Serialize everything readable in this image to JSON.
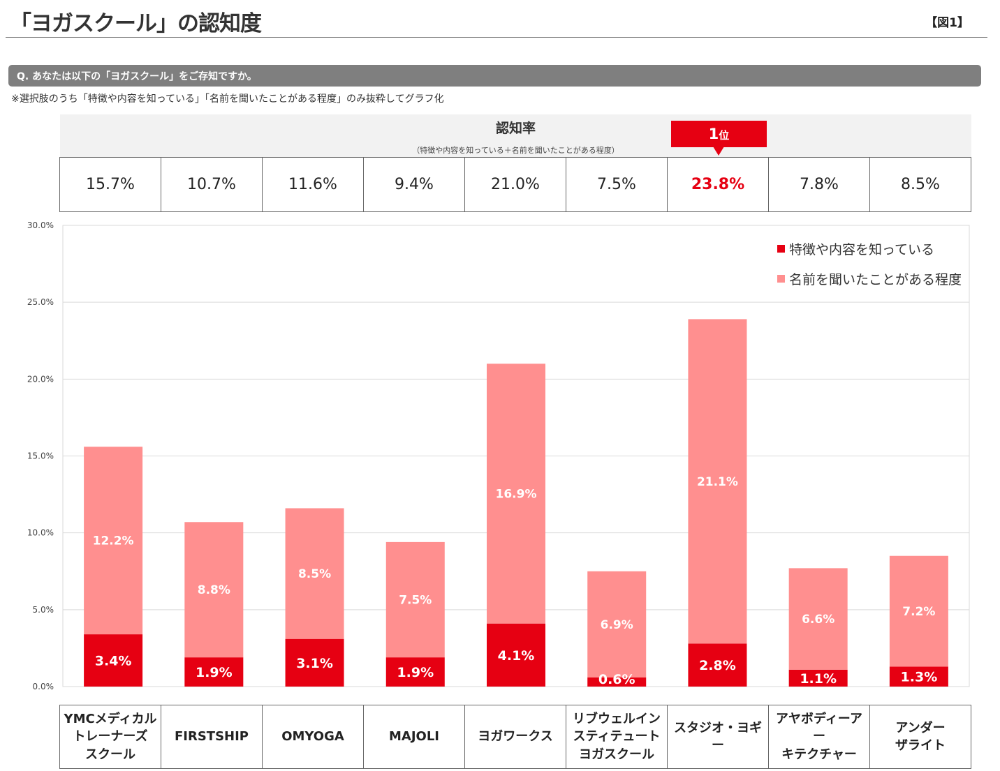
{
  "header": {
    "title": "「ヨガスクール」の認知度",
    "figure_label": "【図1】"
  },
  "question": "Q. あなたは以下の「ヨガスクール」をご存知ですか。",
  "note": "※選択肢のうち「特徴や内容を知っている」「名前を聞いたことがある程度」のみ抜粋してグラフ化",
  "recognition": {
    "title": "認知率",
    "subtitle": "（特徴や内容を知っている＋名前を聞いたことがある程度）",
    "rank_number": "1",
    "rank_suffix": "位",
    "rates": [
      "15.7%",
      "10.7%",
      "11.6%",
      "9.4%",
      "21.0%",
      "7.5%",
      "23.8%",
      "7.8%",
      "8.5%"
    ],
    "top_index": 6
  },
  "colors": {
    "dark": "#e60012",
    "light": "#ff8f8f",
    "grid": "#d9d9d9"
  },
  "chart_data": {
    "type": "bar",
    "stacked": true,
    "categories": [
      "YMCメディカル\nトレーナーズ\nスクール",
      "FIRSTSHIP",
      "OMYOGA",
      "MAJOLI",
      "ヨガワークス",
      "リブウェルイン\nスティテュート\nヨガスクール",
      "スタジオ・ヨギー",
      "アヤボディーアー\nキテクチャー",
      "アンダー\nザライト"
    ],
    "series": [
      {
        "name": "特徴や内容を知っている",
        "values": [
          3.4,
          1.9,
          3.1,
          1.9,
          4.1,
          0.6,
          2.8,
          1.1,
          1.3
        ],
        "labels": [
          "3.4%",
          "1.9%",
          "3.1%",
          "1.9%",
          "4.1%",
          "0.6%",
          "2.8%",
          "1.1%",
          "1.3%"
        ]
      },
      {
        "name": "名前を聞いたことがある程度",
        "values": [
          12.2,
          8.8,
          8.5,
          7.5,
          16.9,
          6.9,
          21.1,
          6.6,
          7.2
        ],
        "labels": [
          "12.2%",
          "8.8%",
          "8.5%",
          "7.5%",
          "16.9%",
          "6.9%",
          "21.1%",
          "6.6%",
          "7.2%"
        ]
      }
    ],
    "ylim": [
      0,
      30
    ],
    "yticks": [
      0,
      5,
      10,
      15,
      20,
      25,
      30
    ],
    "ytick_labels": [
      "0.0%",
      "5.0%",
      "10.0%",
      "15.0%",
      "20.0%",
      "25.0%",
      "30.0%"
    ],
    "legend_position": "top-right",
    "grid": true
  }
}
